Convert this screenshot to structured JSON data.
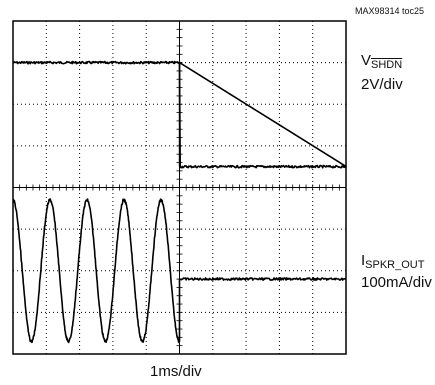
{
  "chart_data": {
    "type": "line",
    "title": "",
    "figure_id": "MAX98314 toc25",
    "x_scale": "1ms/div",
    "grid": true,
    "grid_divisions": {
      "x": 10,
      "y": 8
    },
    "trace_color": "#000000",
    "series": [
      {
        "name_prefix": "V",
        "name_sub": "SHDN",
        "scale": "2V/div",
        "description": "step high to low at center (x = 5 div)",
        "levels_div": {
          "before": 7.0,
          "after": 4.5
        },
        "step_at_div": 5.0
      },
      {
        "name_prefix": "I",
        "name_sub": "SPKR_OUT",
        "scale": "100mA/div",
        "description": "sine burst then flat after shutdown",
        "center_div": 2.0,
        "amplitude_div": 1.7,
        "cycles_before_step": 4.5,
        "flat_level_div": 1.8,
        "step_at_div": 5.0
      }
    ]
  }
}
